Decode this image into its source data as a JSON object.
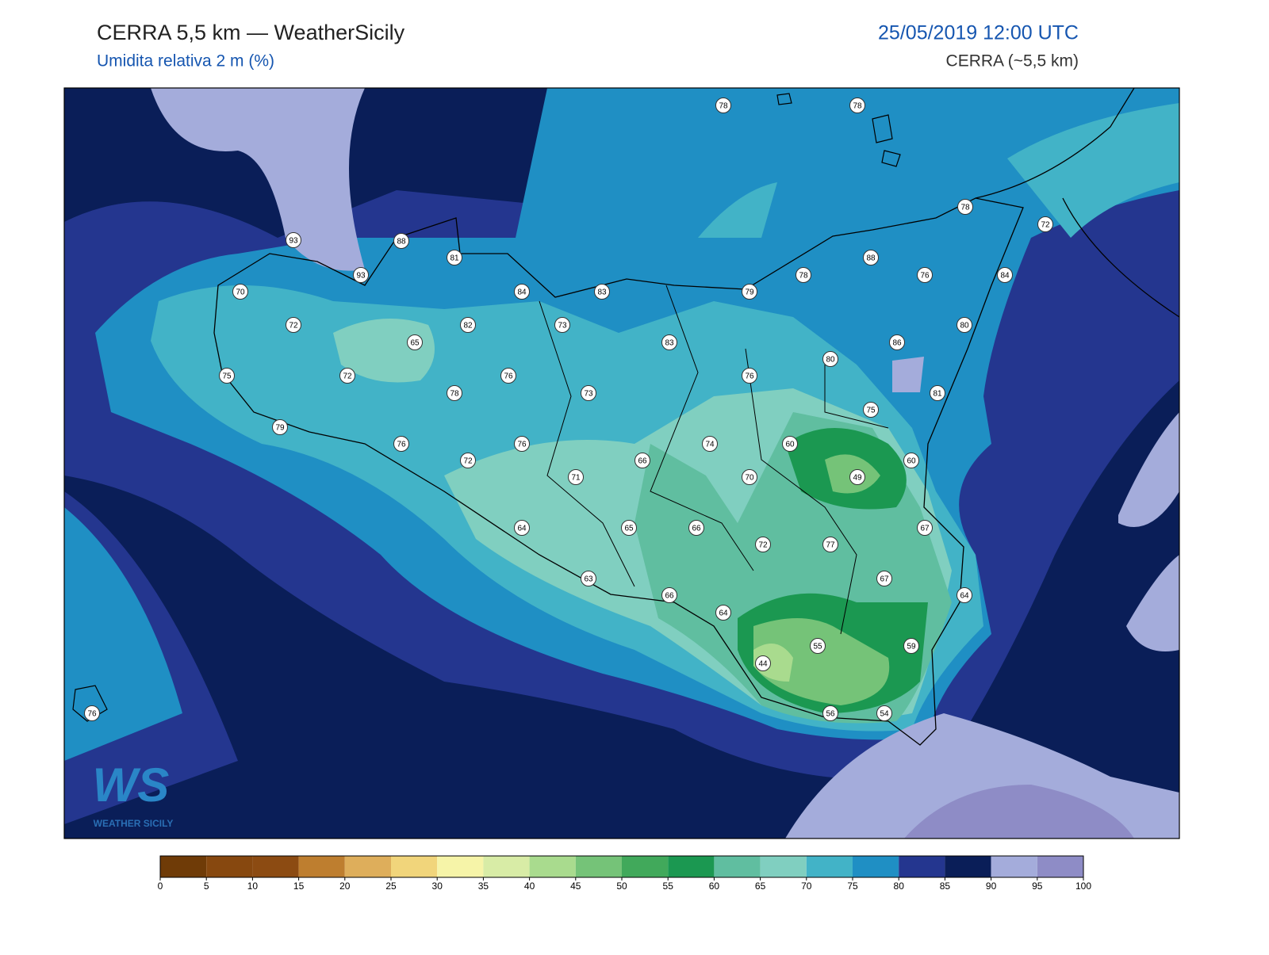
{
  "header": {
    "title": "CERRA 5,5 km — WeatherSicily",
    "subtitle": "Umidita relativa 2 m (%)",
    "datetime": "25/05/2019 12:00 UTC",
    "model": "CERRA (~5,5 km)"
  },
  "stations": [
    78,
    78,
    78,
    72,
    93,
    88,
    81,
    93,
    88,
    78,
    76,
    84,
    70,
    84,
    83,
    79,
    72,
    82,
    73,
    80,
    65,
    83,
    86,
    80,
    75,
    72,
    76,
    76,
    78,
    73,
    81,
    75,
    79,
    76,
    76,
    74,
    60,
    72,
    66,
    60,
    49,
    71,
    70,
    64,
    65,
    66,
    67,
    72,
    77,
    67,
    63,
    64,
    66,
    64,
    55,
    59,
    44,
    56,
    54,
    76
  ],
  "logo": {
    "mark": "WS",
    "text": "WEATHER SICILY"
  },
  "colorbar": {
    "ticks": [
      0,
      5,
      10,
      15,
      20,
      25,
      30,
      35,
      40,
      45,
      50,
      55,
      60,
      65,
      70,
      75,
      80,
      85,
      90,
      95,
      100
    ],
    "colors": [
      "#6f3b07",
      "#87480f",
      "#8c4b12",
      "#be7e2f",
      "#deae5b",
      "#f1d57b",
      "#f6f4a8",
      "#d8eca6",
      "#a9db8e",
      "#75c378",
      "#41a95b",
      "#1b9851",
      "#60bea0",
      "#80cfc0",
      "#42b3c7",
      "#1f8fc4",
      "#24368f",
      "#0a1e58",
      "#a4acdb",
      "#8e8cc6"
    ]
  }
}
